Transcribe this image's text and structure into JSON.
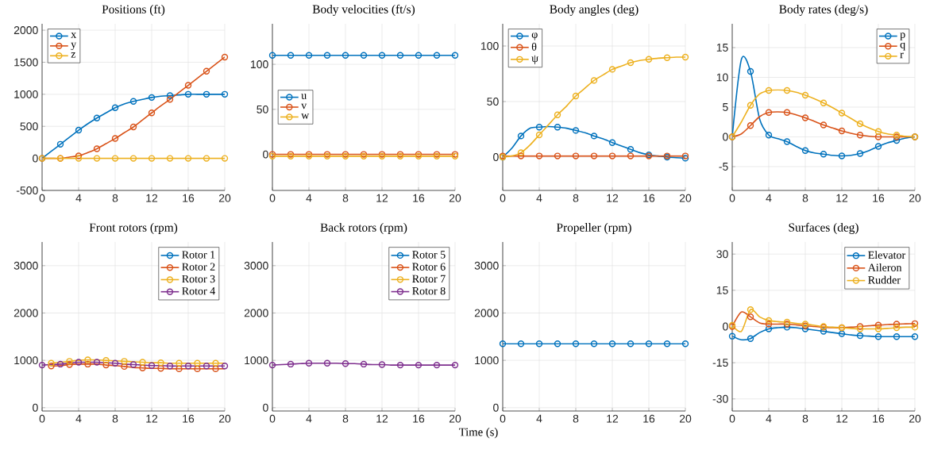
{
  "chart_data": [
    {
      "type": "line",
      "title": "Positions (ft)",
      "x": [
        0,
        1,
        2,
        3,
        4,
        5,
        6,
        7,
        8,
        9,
        10,
        11,
        12,
        13,
        14,
        15,
        16,
        17,
        18,
        19,
        20
      ],
      "xlim": [
        0,
        20
      ],
      "xticks": [
        0,
        4,
        8,
        12,
        16,
        20
      ],
      "ylim": [
        -500,
        2100
      ],
      "yticks": [
        -500,
        0,
        500,
        1000,
        1500,
        2000
      ],
      "grid": true,
      "legend": "top left",
      "marker": "circle",
      "series": [
        {
          "name": "x",
          "color": "#0072bd",
          "values": [
            0,
            110,
            220,
            330,
            440,
            540,
            630,
            710,
            790,
            850,
            890,
            920,
            950,
            970,
            980,
            990,
            1000,
            1000,
            1000,
            1000,
            1000
          ]
        },
        {
          "name": "y",
          "color": "#d95319",
          "values": [
            0,
            0,
            0,
            20,
            40,
            90,
            150,
            230,
            310,
            400,
            490,
            600,
            710,
            820,
            920,
            1030,
            1140,
            1250,
            1360,
            1470,
            1580
          ]
        },
        {
          "name": "z",
          "color": "#edb120",
          "values": [
            0,
            0,
            0,
            0,
            0,
            0,
            0,
            0,
            0,
            0,
            0,
            0,
            0,
            0,
            0,
            0,
            0,
            0,
            0,
            0,
            0
          ]
        }
      ]
    },
    {
      "type": "line",
      "title": "Body velocities (ft/s)",
      "x": [
        0,
        1,
        2,
        3,
        4,
        5,
        6,
        7,
        8,
        9,
        10,
        11,
        12,
        13,
        14,
        15,
        16,
        17,
        18,
        19,
        20
      ],
      "xlim": [
        0,
        20
      ],
      "xticks": [
        0,
        4,
        8,
        12,
        16,
        20
      ],
      "ylim": [
        -40,
        145
      ],
      "yticks": [
        0,
        50,
        100
      ],
      "grid": true,
      "legend": "left",
      "marker": "circle",
      "series": [
        {
          "name": "u",
          "color": "#0072bd",
          "values": [
            110,
            110,
            110,
            110,
            110,
            110,
            110,
            110,
            110,
            110,
            110,
            110,
            110,
            110,
            110,
            110,
            110,
            110,
            110,
            110,
            110
          ]
        },
        {
          "name": "v",
          "color": "#d95319",
          "values": [
            0,
            0,
            0,
            0,
            0,
            0,
            0,
            0,
            0,
            0,
            0,
            0,
            0,
            0,
            0,
            0,
            0,
            0,
            0,
            0,
            0
          ]
        },
        {
          "name": "w",
          "color": "#edb120",
          "values": [
            -2,
            -2,
            -2,
            -2,
            -2,
            -2,
            -2,
            -2,
            -2,
            -2,
            -2,
            -2,
            -2,
            -2,
            -2,
            -2,
            -2,
            -2,
            -2,
            -2,
            -2
          ]
        }
      ]
    },
    {
      "type": "line",
      "title": "Body angles (deg)",
      "x": [
        0,
        1,
        2,
        3,
        4,
        5,
        6,
        7,
        8,
        9,
        10,
        11,
        12,
        13,
        14,
        15,
        16,
        17,
        18,
        19,
        20
      ],
      "xlim": [
        0,
        20
      ],
      "xticks": [
        0,
        4,
        8,
        12,
        16,
        20
      ],
      "ylim": [
        -30,
        120
      ],
      "yticks": [
        0,
        50,
        100
      ],
      "grid": true,
      "legend": "top left",
      "marker": "circle",
      "series": [
        {
          "name": "φ",
          "color": "#0072bd",
          "values": [
            0,
            8,
            19,
            26,
            27,
            27.5,
            27,
            26,
            24,
            22,
            19,
            16.5,
            13,
            10,
            7,
            4,
            2,
            1,
            0,
            -0.5,
            -1
          ]
        },
        {
          "name": "θ",
          "color": "#d95319",
          "values": [
            1,
            1,
            1,
            1,
            1,
            1,
            1,
            1,
            1,
            1,
            1,
            1,
            1,
            1,
            1,
            1,
            1,
            1,
            1,
            1,
            1
          ]
        },
        {
          "name": "ψ",
          "color": "#edb120",
          "values": [
            0,
            1,
            4,
            11,
            20,
            29,
            38,
            46,
            55,
            62,
            69,
            74,
            79,
            82,
            85,
            87,
            88,
            89,
            89.5,
            90,
            90
          ]
        }
      ]
    },
    {
      "type": "line",
      "title": "Body rates (deg/s)",
      "x": [
        0,
        1,
        2,
        3,
        4,
        5,
        6,
        7,
        8,
        9,
        10,
        11,
        12,
        13,
        14,
        15,
        16,
        17,
        18,
        19,
        20
      ],
      "xlim": [
        0,
        20
      ],
      "xticks": [
        0,
        4,
        8,
        12,
        16,
        20
      ],
      "ylim": [
        -9,
        19
      ],
      "yticks": [
        -5,
        0,
        5,
        10,
        15
      ],
      "grid": true,
      "legend": "top right",
      "marker": "circle",
      "series": [
        {
          "name": "p",
          "color": "#0072bd",
          "values": [
            0,
            13,
            11,
            3,
            0.3,
            -0.3,
            -0.8,
            -1.6,
            -2.3,
            -2.7,
            -2.9,
            -3.1,
            -3.2,
            -3.1,
            -2.8,
            -2.3,
            -1.6,
            -1.0,
            -0.6,
            -0.2,
            0
          ]
        },
        {
          "name": "q",
          "color": "#d95319",
          "values": [
            0,
            0.5,
            1.9,
            3.4,
            4.1,
            4.2,
            4.1,
            3.7,
            3.2,
            2.6,
            2.0,
            1.5,
            1.0,
            0.6,
            0.3,
            0.1,
            0,
            0,
            0,
            0,
            0
          ]
        },
        {
          "name": "r",
          "color": "#edb120",
          "values": [
            0,
            2.5,
            5.3,
            7.2,
            7.8,
            7.9,
            7.8,
            7.5,
            7.0,
            6.4,
            5.7,
            4.9,
            4.0,
            3.1,
            2.2,
            1.5,
            0.9,
            0.5,
            0.3,
            0.1,
            0
          ]
        }
      ]
    },
    {
      "type": "line",
      "title": "Front rotors (rpm)",
      "x": [
        0,
        1,
        2,
        3,
        4,
        5,
        6,
        7,
        8,
        9,
        10,
        11,
        12,
        13,
        14,
        15,
        16,
        17,
        18,
        19,
        20
      ],
      "xlim": [
        0,
        20
      ],
      "xticks": [
        0,
        4,
        8,
        12,
        16,
        20
      ],
      "ylim": [
        -70,
        3500
      ],
      "yticks": [
        0,
        1000,
        2000,
        3000
      ],
      "grid": true,
      "legend": "top right",
      "marker": "circle",
      "series": [
        {
          "name": "Rotor 1",
          "color": "#0072bd",
          "values": [
            null,
            null,
            null,
            null,
            null,
            null,
            null,
            null,
            null,
            null,
            null,
            null,
            null,
            null,
            null,
            null,
            null,
            null,
            null,
            null,
            null
          ]
        },
        {
          "name": "Rotor 2",
          "color": "#d95319",
          "values": [
            null,
            880,
            890,
            910,
            920,
            920,
            920,
            900,
            890,
            870,
            850,
            840,
            830,
            830,
            820,
            820,
            820,
            820,
            820,
            820,
            820
          ]
        },
        {
          "name": "Rotor 3",
          "color": "#edb120",
          "values": [
            null,
            940,
            960,
            980,
            1000,
            1010,
            1010,
            1000,
            990,
            980,
            970,
            960,
            950,
            950,
            940,
            940,
            940,
            940,
            940,
            940,
            940
          ]
        },
        {
          "name": "Rotor 4",
          "color": "#7e2f8e",
          "values": [
            900,
            910,
            920,
            940,
            960,
            960,
            960,
            950,
            940,
            920,
            910,
            900,
            890,
            890,
            880,
            880,
            880,
            880,
            880,
            880,
            880
          ]
        }
      ]
    },
    {
      "type": "line",
      "title": "Back rotors (rpm)",
      "x": [
        0,
        1,
        2,
        3,
        4,
        5,
        6,
        7,
        8,
        9,
        10,
        11,
        12,
        13,
        14,
        15,
        16,
        17,
        18,
        19,
        20
      ],
      "xlim": [
        0,
        20
      ],
      "xticks": [
        0,
        4,
        8,
        12,
        16,
        20
      ],
      "ylim": [
        -70,
        3500
      ],
      "yticks": [
        0,
        1000,
        2000,
        3000
      ],
      "grid": true,
      "legend": "top right",
      "marker": "circle",
      "series": [
        {
          "name": "Rotor 5",
          "color": "#0072bd",
          "values": [
            null,
            null,
            null,
            null,
            null,
            null,
            null,
            null,
            null,
            null,
            null,
            null,
            null,
            null,
            null,
            null,
            null,
            null,
            null,
            null,
            null
          ]
        },
        {
          "name": "Rotor 6",
          "color": "#d95319",
          "values": [
            null,
            null,
            null,
            null,
            null,
            null,
            null,
            null,
            null,
            null,
            null,
            null,
            null,
            null,
            null,
            null,
            null,
            null,
            null,
            null,
            null
          ]
        },
        {
          "name": "Rotor 7",
          "color": "#edb120",
          "values": [
            null,
            null,
            null,
            null,
            null,
            null,
            null,
            null,
            null,
            null,
            null,
            null,
            null,
            null,
            null,
            null,
            null,
            null,
            null,
            null,
            null
          ]
        },
        {
          "name": "Rotor 8",
          "color": "#7e2f8e",
          "values": [
            900,
            910,
            920,
            930,
            940,
            940,
            940,
            940,
            930,
            930,
            920,
            910,
            910,
            900,
            900,
            900,
            900,
            900,
            900,
            900,
            900
          ]
        }
      ]
    },
    {
      "type": "line",
      "title": "Propeller (rpm)",
      "xlabel": "Time (s)",
      "x": [
        0,
        1,
        2,
        3,
        4,
        5,
        6,
        7,
        8,
        9,
        10,
        11,
        12,
        13,
        14,
        15,
        16,
        17,
        18,
        19,
        20
      ],
      "xlim": [
        0,
        20
      ],
      "xticks": [
        0,
        4,
        8,
        12,
        16,
        20
      ],
      "ylim": [
        -70,
        3500
      ],
      "yticks": [
        0,
        1000,
        2000,
        3000
      ],
      "grid": true,
      "marker": "circle",
      "series": [
        {
          "color": "#0072bd",
          "values": [
            1350,
            1350,
            1350,
            1350,
            1350,
            1350,
            1350,
            1350,
            1350,
            1350,
            1350,
            1350,
            1350,
            1350,
            1350,
            1350,
            1350,
            1350,
            1350,
            1350,
            1350
          ]
        }
      ]
    },
    {
      "type": "line",
      "title": "Surfaces (deg)",
      "x": [
        0,
        1,
        2,
        3,
        4,
        5,
        6,
        7,
        8,
        9,
        10,
        11,
        12,
        13,
        14,
        15,
        16,
        17,
        18,
        19,
        20
      ],
      "xlim": [
        0,
        20
      ],
      "xticks": [
        0,
        4,
        8,
        12,
        16,
        20
      ],
      "ylim": [
        -35,
        35
      ],
      "yticks": [
        -30,
        -15,
        0,
        15,
        30
      ],
      "grid": true,
      "legend": "top right",
      "marker": "circle",
      "series": [
        {
          "name": "Elevator",
          "color": "#0072bd",
          "values": [
            -4,
            -5.5,
            -5,
            -2.5,
            -1,
            -0.5,
            -0.3,
            -0.5,
            -1,
            -1.5,
            -2,
            -2.5,
            -3,
            -3.5,
            -3.8,
            -4,
            -4.2,
            -4.2,
            -4.2,
            -4.2,
            -4.2
          ]
        },
        {
          "name": "Aileron",
          "color": "#d95319",
          "values": [
            0,
            6,
            4,
            1.5,
            1,
            1,
            1,
            0.7,
            0.3,
            0,
            -0.3,
            -0.5,
            -0.5,
            -0.3,
            0,
            0.3,
            0.6,
            0.8,
            1,
            1.1,
            1.2
          ]
        },
        {
          "name": "Rudder",
          "color": "#edb120",
          "values": [
            0.5,
            -2,
            7,
            4,
            2.5,
            2,
            1.8,
            1.3,
            1,
            0.5,
            0,
            -0.3,
            -0.5,
            -0.8,
            -1,
            -1,
            -1,
            -0.8,
            -0.5,
            -0.3,
            -0.3
          ]
        }
      ]
    }
  ]
}
